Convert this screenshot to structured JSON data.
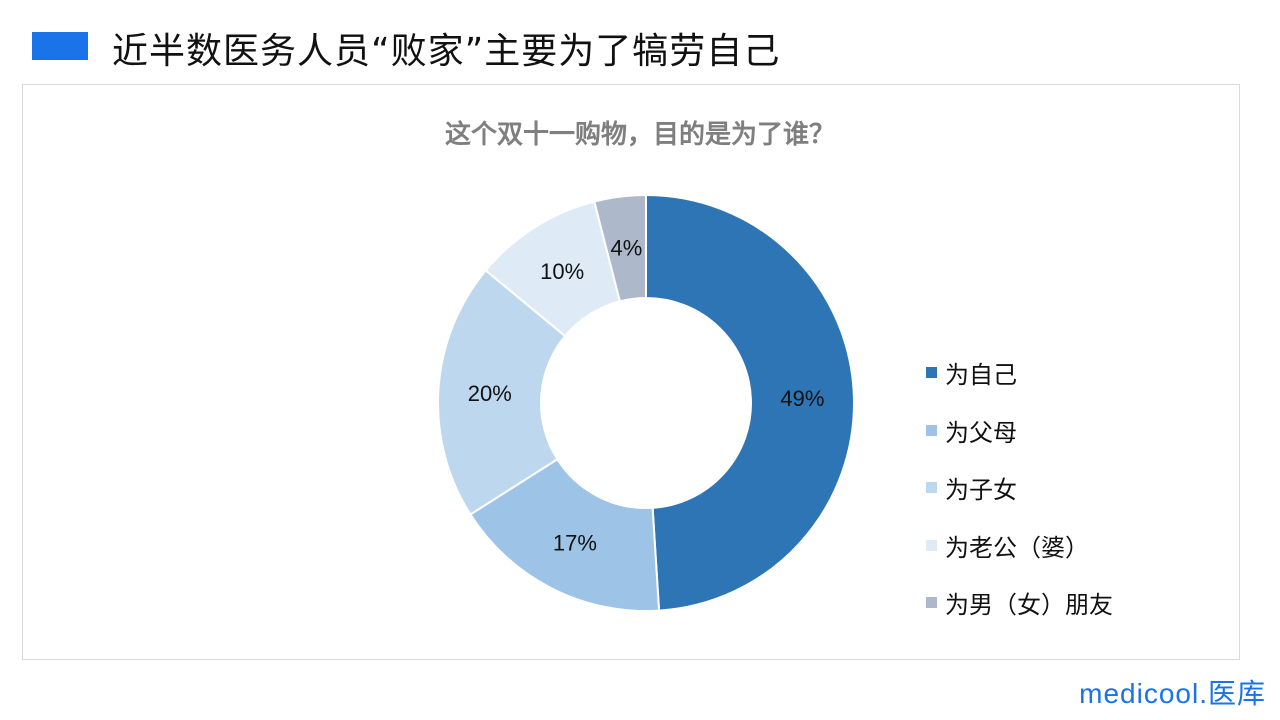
{
  "header": {
    "title": "近半数医务人员“败家”主要为了犒劳自己",
    "accent_color": "#1a73e8"
  },
  "logo": "medicool.医库",
  "chart_data": {
    "type": "pie",
    "donut": true,
    "title": "这个双十一购物，目的是为了谁？",
    "categories": [
      "为自己",
      "为父母",
      "为子女",
      "为老公（婆）",
      "为男（女）朋友"
    ],
    "values": [
      49,
      17,
      20,
      10,
      4
    ],
    "labels": [
      "49%",
      "17%",
      "20%",
      "10%",
      "4%"
    ],
    "colors": [
      "#2e75b6",
      "#9dc3e6",
      "#bdd7ee",
      "#deebf7",
      "#adb9ca"
    ],
    "legend_position": "right"
  }
}
